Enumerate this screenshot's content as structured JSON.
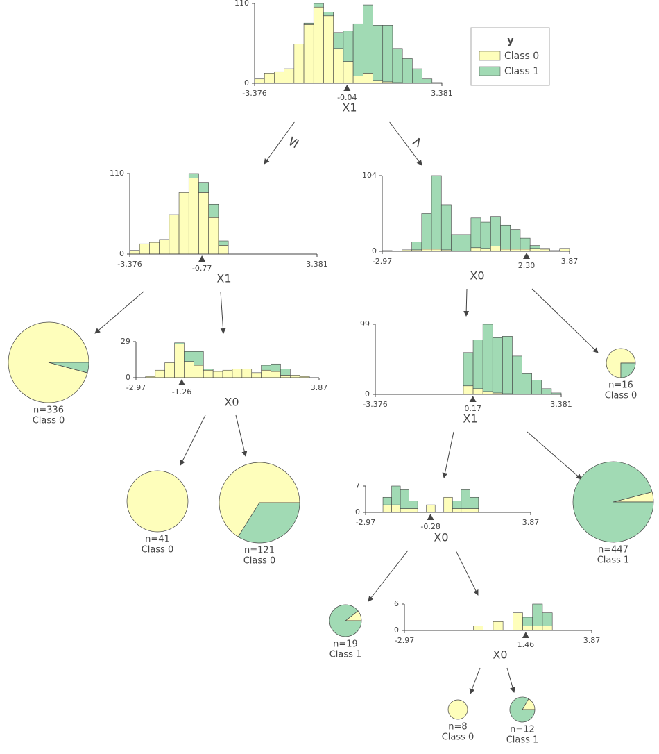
{
  "legend": {
    "title": "y",
    "classes": [
      "Class 0",
      "Class 1"
    ],
    "colors": [
      "#fefebb",
      "#a1dab4"
    ]
  },
  "edge_labels": [
    "≤",
    ">"
  ],
  "splits": [
    {
      "feature": "X1",
      "xlim": [
        -3.376,
        3.381
      ],
      "ylim": [
        0,
        110
      ],
      "split": -0.04,
      "class0": [
        6,
        14,
        16,
        20,
        54,
        81,
        105,
        93,
        48,
        30,
        10,
        14,
        4,
        2,
        1,
        0,
        0,
        0,
        0
      ],
      "class1": [
        0,
        0,
        0,
        0,
        0,
        2,
        5,
        5,
        22,
        42,
        72,
        94,
        76,
        78,
        47,
        34,
        20,
        6,
        1
      ]
    },
    {
      "feature": "X1",
      "xlim": [
        -3.376,
        3.381
      ],
      "ylim": [
        0,
        110
      ],
      "split": -0.77,
      "class0": [
        5,
        14,
        16,
        20,
        54,
        84,
        104,
        84,
        50,
        12,
        0,
        0,
        0,
        0,
        0,
        0,
        0,
        0,
        0
      ],
      "class1": [
        0,
        0,
        0,
        0,
        0,
        0,
        6,
        14,
        18,
        6,
        0,
        0,
        0,
        0,
        0,
        0,
        0,
        0,
        0
      ]
    },
    {
      "feature": "X0",
      "xlim": [
        -2.97,
        3.87
      ],
      "ylim": [
        0,
        104
      ],
      "split": {
        "value": 2.3,
        "label": "2.30"
      },
      "class0": [
        1,
        0,
        2,
        2,
        3,
        3,
        2,
        0,
        0,
        5,
        4,
        7,
        3,
        3,
        3,
        4,
        3,
        0,
        4
      ],
      "class1": [
        0,
        0,
        0,
        11,
        49,
        101,
        62,
        23,
        23,
        41,
        36,
        41,
        33,
        27,
        15,
        4,
        1,
        1,
        0
      ]
    },
    {
      "feature": "X0",
      "xlim": [
        -2.97,
        3.87
      ],
      "ylim": [
        0,
        29
      ],
      "split": -1.26,
      "class0": [
        0,
        1,
        6,
        12,
        27,
        13,
        10,
        6,
        5,
        6,
        7,
        7,
        4,
        6,
        5,
        2,
        2,
        1,
        0
      ],
      "class1": [
        0,
        0,
        0,
        0,
        1,
        8,
        11,
        1,
        0,
        0,
        0,
        0,
        0,
        4,
        6,
        5,
        0,
        0,
        0
      ]
    },
    {
      "feature": "X1",
      "xlim": [
        -3.376,
        3.381
      ],
      "ylim": [
        0,
        99
      ],
      "split": 0.17,
      "class0": [
        0,
        0,
        0,
        0,
        0,
        0,
        0,
        0,
        0,
        12,
        8,
        4,
        2,
        1,
        0,
        0,
        0,
        0,
        0
      ],
      "class1": [
        0,
        0,
        0,
        0,
        0,
        0,
        0,
        0,
        0,
        47,
        69,
        95,
        78,
        81,
        54,
        30,
        20,
        8,
        2
      ]
    },
    {
      "feature": "X0",
      "xlim": [
        -2.97,
        3.87
      ],
      "ylim": [
        0,
        7
      ],
      "split": -0.28,
      "class0": [
        0,
        0,
        2,
        2,
        1,
        1,
        0,
        2,
        0,
        4,
        1,
        1,
        1,
        0,
        0,
        0,
        0,
        0,
        0
      ],
      "class1": [
        0,
        0,
        2,
        5,
        5,
        2,
        0,
        0,
        0,
        0,
        2,
        5,
        3,
        0,
        0,
        0,
        0,
        0,
        0
      ]
    },
    {
      "feature": "X0",
      "xlim": [
        -2.97,
        3.87
      ],
      "ylim": [
        0,
        6
      ],
      "split": 1.46,
      "class0": [
        0,
        0,
        0,
        0,
        0,
        0,
        0,
        1,
        0,
        2,
        0,
        4,
        1,
        1,
        1,
        0,
        0,
        0,
        0
      ],
      "class1": [
        0,
        0,
        0,
        0,
        0,
        0,
        0,
        0,
        0,
        0,
        0,
        0,
        2,
        5,
        3,
        0,
        0,
        0,
        0
      ]
    }
  ],
  "leaves": [
    {
      "n": "n=336",
      "class": "Class 0",
      "counts": [
        322,
        14
      ]
    },
    {
      "n": "n=41",
      "class": "Class 0",
      "counts": [
        41,
        0
      ]
    },
    {
      "n": "n=121",
      "class": "Class 0",
      "counts": [
        80,
        41
      ]
    },
    {
      "n": "n=16",
      "class": "Class 0",
      "counts": [
        12,
        4
      ]
    },
    {
      "n": "n=447",
      "class": "Class 1",
      "counts": [
        18,
        429
      ]
    },
    {
      "n": "n=19",
      "class": "Class 1",
      "counts": [
        2,
        17
      ]
    },
    {
      "n": "n=8",
      "class": "Class 0",
      "counts": [
        8,
        0
      ]
    },
    {
      "n": "n=12",
      "class": "Class 1",
      "counts": [
        2,
        10
      ]
    }
  ]
}
